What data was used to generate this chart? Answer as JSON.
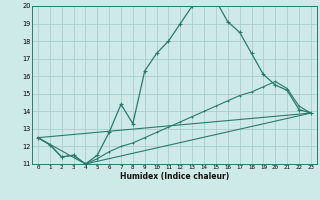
{
  "xlabel": "Humidex (Indice chaleur)",
  "bg_color": "#ceeae8",
  "line_color": "#2a7a6a",
  "grid_color": "#a8cece",
  "xlim": [
    -0.5,
    23.5
  ],
  "ylim": [
    11,
    20
  ],
  "yticks": [
    11,
    12,
    13,
    14,
    15,
    16,
    17,
    18,
    19,
    20
  ],
  "xticks": [
    0,
    1,
    2,
    3,
    4,
    5,
    6,
    7,
    8,
    9,
    10,
    11,
    12,
    13,
    14,
    15,
    16,
    17,
    18,
    19,
    20,
    21,
    22,
    23
  ],
  "line1_x": [
    0,
    1,
    2,
    3,
    4,
    5,
    6,
    7,
    8,
    9,
    10,
    11,
    12,
    13,
    14,
    15,
    16,
    17,
    18,
    19,
    20,
    21,
    22,
    23
  ],
  "line1_y": [
    12.5,
    12.1,
    11.4,
    11.5,
    11.0,
    11.5,
    12.8,
    14.4,
    13.3,
    16.3,
    17.3,
    18.0,
    19.0,
    20.0,
    20.1,
    20.3,
    19.1,
    18.5,
    17.3,
    16.1,
    15.5,
    15.2,
    14.1,
    13.9
  ],
  "line2_x": [
    0,
    1,
    2,
    3,
    4,
    5,
    6,
    7,
    8,
    9,
    10,
    11,
    12,
    13,
    14,
    15,
    16,
    17,
    18,
    19,
    20,
    21,
    22,
    23
  ],
  "line2_y": [
    12.5,
    12.1,
    11.4,
    11.5,
    11.0,
    11.3,
    11.7,
    12.0,
    12.2,
    12.5,
    12.8,
    13.1,
    13.4,
    13.7,
    14.0,
    14.3,
    14.6,
    14.9,
    15.1,
    15.4,
    15.7,
    15.3,
    14.3,
    13.9
  ],
  "line3_x": [
    0,
    23
  ],
  "line3_y": [
    12.5,
    13.9
  ],
  "line4_x": [
    0,
    4,
    23
  ],
  "line4_y": [
    12.5,
    11.0,
    13.9
  ]
}
